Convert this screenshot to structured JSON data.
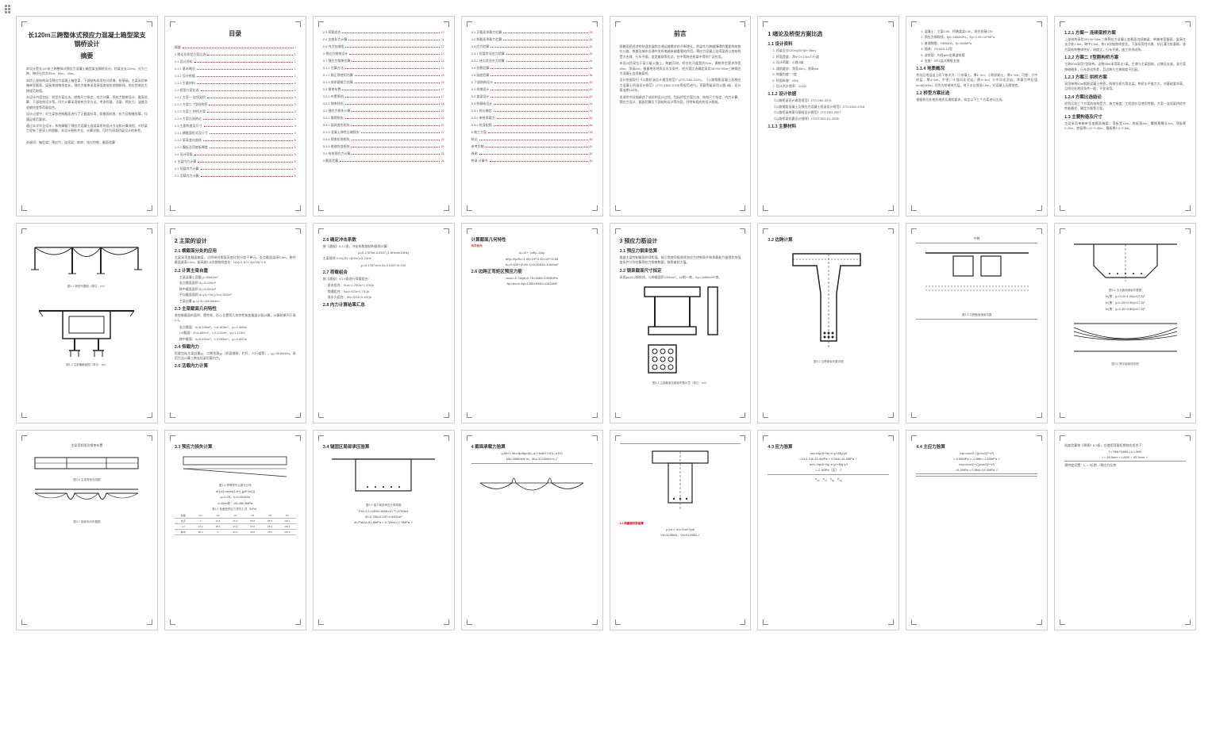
{
  "doc": {
    "title_line1": "长120m三跨整体式预应力混凝土箱型梁支钢桥设计",
    "title_line2": "摘要",
    "abstract_paras": [
      "本设计是长120米三跨整体式预应力混凝土箱型梁支钢桥设计。桥梁全长120m，分为三跨，跨径分别为35m、50m、35m。",
      "本桥上部结构采用预应力混凝土箱型梁，下部结构采用柱式桥墩、桩基础。主梁采用单箱单室截面，梁高按抛物线变化。预应力钢束采用高强度低松弛钢绞线，张拉控制应力按规范取值。",
      "本设计内容包括：桥型方案比选、结构尺寸拟定、内力计算、预应力钢束设计、截面验算、下部结构设计等。内力计算采用结构力学方法，考虑恒载、活载、预应力、温度及收缩徐变等荷载组合。",
      "设计过程中，对主梁各控制截面进行了正截面抗弯、斜截面抗剪、应力及裂缝验算，均满足规范要求。",
      "通过本次毕业设计，系统掌握了预应力混凝土连续梁桥的设计方法和计算流程，对桥梁工程有了更深入的理解。本设计图纸齐全、计算详细，可作为同类桥梁设计的参考。"
    ],
    "keywords": "关键词：箱型梁；预应力；连续梁；钢束；张拉控制；截面验算",
    "toc_title": "目录",
    "toc1": [
      {
        "label": "摘要",
        "pg": "I"
      },
      {
        "label": "1 绪论及桥型方案比选",
        "pg": "1"
      },
      {
        "label": "1.1 设计资料",
        "pg": "1"
      },
      {
        "label": "1.1.1 基本概况",
        "pg": "1"
      },
      {
        "label": "1.1.2 设计依据",
        "pg": "1"
      },
      {
        "label": "1.1.3 主要材料",
        "pg": "2"
      },
      {
        "label": "1.2 桥型方案比选",
        "pg": "2"
      },
      {
        "label": "1.2.1 方案一 连续梁桥",
        "pg": "3"
      },
      {
        "label": "1.2.2 方案二 T型刚构桥",
        "pg": "3"
      },
      {
        "label": "1.2.3 方案三 拱桥方案",
        "pg": "3"
      },
      {
        "label": "1.2.4 方案比选结论",
        "pg": "4"
      },
      {
        "label": "1.3 主要构造及尺寸",
        "pg": "4"
      },
      {
        "label": "1.3.1 横截面形式及尺寸",
        "pg": "4"
      },
      {
        "label": "1.3.2 梁高变化曲线",
        "pg": "5"
      },
      {
        "label": "1.3.3 腹板及顶底板厚度",
        "pg": "5"
      },
      {
        "label": "1.4 设计荷载",
        "pg": "5"
      },
      {
        "label": "2 主梁内力计算",
        "pg": "6"
      },
      {
        "label": "2.1 恒载内力计算",
        "pg": "6"
      },
      {
        "label": "2.2 活载内力计算",
        "pg": "8"
      }
    ],
    "toc2": [
      {
        "label": "2.3 荷载组合",
        "pg": "10"
      },
      {
        "label": "2.4 支座反力计算",
        "pg": "11"
      },
      {
        "label": "2.5 内力包络图",
        "pg": "12"
      },
      {
        "label": "3 预应力钢束设计",
        "pg": "14"
      },
      {
        "label": "3.1 预应力钢束估算",
        "pg": "14"
      },
      {
        "label": "3.1.1 估算方法",
        "pg": "14"
      },
      {
        "label": "3.1.2 按正常使用估算",
        "pg": "15"
      },
      {
        "label": "3.1.3 按承载能力估算",
        "pg": "16"
      },
      {
        "label": "3.2 钢束布置",
        "pg": "17"
      },
      {
        "label": "3.2.1 布置原则",
        "pg": "17"
      },
      {
        "label": "3.2.2 钢束线形",
        "pg": "18"
      },
      {
        "label": "3.3 预应力损失计算",
        "pg": "20"
      },
      {
        "label": "3.3.1 摩擦损失",
        "pg": "20"
      },
      {
        "label": "3.3.2 锚具变形损失",
        "pg": "21"
      },
      {
        "label": "3.3.3 混凝土弹性压缩损失",
        "pg": "22"
      },
      {
        "label": "3.3.4 钢束松弛损失",
        "pg": "23"
      },
      {
        "label": "3.3.5 收缩徐变损失",
        "pg": "24"
      },
      {
        "label": "3.4 有效预应力计算",
        "pg": "26"
      },
      {
        "label": "4 截面验算",
        "pg": "28"
      }
    ],
    "toc3": [
      {
        "label": "4.1 正截面承载力验算",
        "pg": "28"
      },
      {
        "label": "4.2 斜截面承载力验算",
        "pg": "30"
      },
      {
        "label": "4.3 应力验算",
        "pg": "32"
      },
      {
        "label": "4.3.1 短暂状况应力验算",
        "pg": "32"
      },
      {
        "label": "4.3.2 持久状况应力验算",
        "pg": "34"
      },
      {
        "label": "4.4 抗裂验算",
        "pg": "36"
      },
      {
        "label": "4.5 挠度验算",
        "pg": "38"
      },
      {
        "label": "5 下部结构设计",
        "pg": "40"
      },
      {
        "label": "5.1 桥墩设计",
        "pg": "40"
      },
      {
        "label": "5.2 盖梁设计",
        "pg": "42"
      },
      {
        "label": "5.3 桩基础设计",
        "pg": "44"
      },
      {
        "label": "5.3.1 桩长确定",
        "pg": "44"
      },
      {
        "label": "5.3.2 单桩承载力",
        "pg": "45"
      },
      {
        "label": "5.3.3 桩身配筋",
        "pg": "46"
      },
      {
        "label": "6 施工方案",
        "pg": "48"
      },
      {
        "label": "结论",
        "pg": "50"
      },
      {
        "label": "参考文献",
        "pg": "51"
      },
      {
        "label": "致谢",
        "pg": "52"
      },
      {
        "label": "附录 计算书",
        "pg": "53"
      }
    ],
    "preface_title": "前言",
    "preface_paras": [
      "随着国民经济的快速发展和交通运输需求的不断增长，桥梁作为跨越障碍的重要构筑物在公路、铁路及城市交通中发挥着越来越重要的作用。预应力混凝土连续梁桥以其结构受力合理、行车平顺、造型美观等优点，在中等跨径桥梁中得到广泛应用。",
      "本设计桥梁位于某二级公路上，跨越河流，桥位处河道宽约90m，通航净空要求净宽40m、净高6m。根据地形地质及水文条件，经方案比选确定采用35+50+35m三跨预应力混凝土连续箱梁桥。",
      "设计依据现行《公路桥涵设计通用规范》(JTG D60-2015)、《公路钢筋混凝土及预应力混凝土桥涵设计规范》(JTG 3362-2018)等规范进行。荷载等级采用公路-I级，设计基准期100年。",
      "本说明书详细阐述了该桥的设计过程，包括桥型方案比选、结构尺寸拟定、内力计算、预应力设计、截面验算及下部结构设计等内容，并附有相应的设计图纸。"
    ],
    "ch1_title": "1 绪论及桥型方案比选",
    "ch1_1": "1.1 设计资料",
    "ch1_items": [
      "1. 桥梁全长120m(35+50+35m)",
      "2. 桥面宽度：净9+2×1.5m人行道",
      "3. 设计荷载：公路-I级",
      "4. 通航要求：净宽40m，净高6m",
      "5. 地震烈度：7度",
      "6. 桥面纵坡：≤3%",
      "7. 设计洪水频率：1/100"
    ],
    "ch1_1_2": "1.1.2 设计依据",
    "ch1_deps": [
      "《公路桥涵设计通用规范》JTG D60-2015",
      "《公路钢筋混凝土及预应力混凝土桥涵设计规范》JTG 3362-2018",
      "《公路桥涵地基与基础设计规范》JTG D63-2007",
      "《公路桥梁抗震设计细则》JTG/T B02-01-2008"
    ],
    "ch1_1_3": "1.1.3 主要材料",
    "p6_items": [
      "1. 混凝土：主梁C50，桥墩盖梁C40，承台桩基C30",
      "2. 预应力钢绞线：fpk=1860MPa，Ep=1.95×10⁵MPa",
      "3. 普通钢筋：HRB400，fy=360MPa",
      "4. 锚具：OVM15-12型",
      "5. 波纹管：内径φ90金属波纹管",
      "6. 支座：GPZ盆式橡胶支座"
    ],
    "p6_h1": "1.1.4 地质概况",
    "p6_p1": "桥址区地层自上而下依次为：①杂填土，厚1~2m；②粉质粘土，厚3~5m，可塑；③中砂层，厚4~6m，中密；④强风化泥岩，厚3~4m；⑤中风化泥岩，承载力特征值fa=800kPa，可作为桩端持力层。地下水位埋深2.5m，对混凝土无腐蚀性。",
    "p6_h2": "1.2 桥型方案比选",
    "p6_p2": "根据桥位处地形地质及通航要求，拟定以下三个方案进行比选。",
    "p7_h1": "1.2.1 方案一 连续梁桥方案",
    "p7_p1": "上部结构采用35+50+35m三跨预应力混凝土变截面连续箱梁，单箱单室截面。梁高在支点处2.8m，跨中1.6m，按1.8次抛物线变化。下部采用柱式墩、钻孔灌注桩基础。该方案结构整体性好，刚度大，行车平顺，施工技术成熟。",
    "p7_h2": "1.2.2 方案二 T型刚构桥方案",
    "p7_p2": "主跨50m采用T型刚构，边跨35m采用简支T梁。主墩与主梁固结，边墩设支座。该方案伸缩缝多，行车舒适性差，且边跨与主跨刚度不匹配。",
    "p7_h3": "1.2.3 方案三 拱桥方案",
    "p7_p3": "采用单跨50m钢筋混凝土拱桥，两侧引桥为简支梁。拱桥水平推力大，对基础要求高，且桥位处地质条件一般，不宜采用。",
    "p7_h4": "1.2.4 方案比选结论",
    "p7_p4": "综合比较三个方案的结构受力、施工难度、工程造价及使用性能，方案一连续梁桥综合性能最优，确定为推荐方案。",
    "p7_h5": "1.3 主要构造及尺寸",
    "p7_p5": "主梁采用单箱单室变截面箱梁，顶板宽12m，底板宽6m，翼缘悬臂长3m。顶板厚0.25m，底板厚0.22~0.35m，腹板厚0.4~0.6m。",
    "p8_cap1": "图1-1 桥型布置图（单位：cm）",
    "p8_cap2": "图1-2 主梁横截面图（单位：cm）",
    "ch2_title": "2 主梁的设计",
    "ch2_1": "2.1 横截面分处的应用",
    "ch2_1_p": "主梁采用变截面箱梁，沿桥纵向按梁高变化划分若干单元。支点截面梁高2.8m，跨中截面梁高1.6m，梁高按1.8次抛物线变化：h(x)=1.6+1.2(x/25)^1.8",
    "ch2_2": "2.2 计算主梁自重",
    "ch2_2_items": [
      "主梁混凝土容重 γ=26kN/m³",
      "支点截面面积 A₁=8.245m²",
      "跨中截面面积 A₂=5.630m²",
      "平均截面面积 A=(A₁+2A₂)/3=6.502m²",
      "主梁自重 g₁=γ·A=169.0kN/m"
    ],
    "ch2_3": "2.3 主梁截面几何特性",
    "ch2_3_p": "各控制截面的面积、惯性矩、形心位置等几何特性按变截面分段计算，计算结果列于表2-1。",
    "ch2_3_items": [
      "支点截面：A=8.245m²，I=8.963m⁴，yₓ=1.486m",
      "L/4截面：A=6.890m²，I=5.214m⁴，yₓ=1.123m",
      "跨中截面：A=5.630m²，I=3.085m⁴，yₓ=0.852m"
    ],
    "ch2_4": "2.4 恒载内力",
    "ch2_4_p": "恒载包括主梁自重g₁、二期恒载g₂（桥面铺装、栏杆、人行道等）。g₂=35.6kN/m。采用力法计算三跨连续梁恒载内力。",
    "ch2_5": "2.5 活载内力计算",
    "p10_h1": "2.6 确定冲击系数",
    "p10_p1": "按《通规》4.3.2条，冲击系数按结构基频计算：",
    "p10_f1": "μ=0.1767lnf-0.0157  (1.5Hz≤f≤14Hz)",
    "p10_p2": "主梁基频 f=π/(2l²)·√(EI/m)=3.24Hz",
    "p10_f2": "μ=0.1767×ln3.24-0.0157=0.192",
    "p10_h2": "2.7 荷载组合",
    "p10_p3": "按《通规》4.1.5条进行荷载组合：",
    "p10_items": [
      "基本组合：Sud=1.2SGk+1.4SQk",
      "频遇组合：Ssd=SGk+0.7SQk",
      "准永久组合：Sld=SGk+0.4SQk"
    ],
    "p10_h3": "2.8 内力计算结果汇总",
    "p11_h1": "计算截面几何特性",
    "p11_sub": "换算截面",
    "p11_f": [
      "Aₒ=A+（αEp-1)Ap",
      "αEp=Ep/Ec=1.95×10⁵/3.45×10⁴=5.65",
      "Aₒ=5.630+(5.65-1)×0.00834=5.669m²"
    ],
    "p11_h2": "2.6 边跨正弯矩区预应力筋",
    "p11_f2": [
      "σcon=0.75fpk=0.75×1860=1395MPa",
      "Np=σcon·Ap=1395×8340=11634kN"
    ],
    "ch3_title": "3 预应力筋设计",
    "ch3_1": "3.1 预应力钢束估算",
    "ch3_1_p": "根据主梁控制截面的弯矩值，按正常使用极限状态应力控制条件和承载能力极限状态强度条件分别估算预应力钢束数量，取两者较大值。",
    "ch3_2": "3.2 钢束截面尺寸拟定",
    "ch3_2_p": "采用φs15.2钢绞线，公称截面积139mm²，12根一束，Ap=1668mm²/束。",
    "p12_cap": "图3-1 主梁截面及钢束布置示意（单位：cm）",
    "p13_h": "3.2 边跨计算",
    "p13_cap": "图3-2 边跨钢束布置详图",
    "p14_h": "中跨",
    "p14_cap": "图3-3 中跨截面钢束布置",
    "p15_cap": "图3-4 支点截面钢束布置图",
    "p16_cap": "图3-5 跨中钢束线形图",
    "p16_f": [
      "N₁束：y=0.15+1.05(x/17.5)²",
      "N₂束：y=0.25+0.95(x/17.5)²",
      "N₃束：y=0.35+0.85(x/17.5)²"
    ],
    "p17_h": "主梁弯矩图及钢束布置",
    "p17_cap1": "图3-6 主梁弯矩包络图",
    "p17_cap2": "图3-7 钢束纵向布置图",
    "p18_h": "3.3 预应力损失计算",
    "p18_cap": "图3-8 摩擦损失沿梁长分布",
    "p18_items": [
      "σl1(x)=σcon[1-e^(-(μθ+kx))]",
      "μ=0.25，k=0.0015/m",
      "x=60m处：σl1=86.3MPa"
    ],
    "p19_h": "3.4 锚固区局部承压验算",
    "p19_cap": "图3-9 锚下局部承压计算简图",
    "p19_items": [
      "Fld=1.2×1395×1668×10⁻³=2792kN",
      "Al=0.785×0.24²=0.0452m²",
      "σl=Fld/Al=61.8MPa < 0.7βfcd=17.9MPa ✓"
    ],
    "tbl_title": "表3-1 各截面预应力损失汇总（MPa）",
    "tbl_cols": [
      "截面",
      "σl1",
      "σl2",
      "σl4",
      "σl5",
      "σl6",
      "Σσl"
    ],
    "tbl_rows": [
      [
        "支点",
        "0",
        "42.5",
        "35.2",
        "55.8",
        "95.6",
        "229.1"
      ],
      [
        "L/4",
        "43.2",
        "38.1",
        "35.2",
        "55.8",
        "88.3",
        "260.6"
      ],
      [
        "跨中",
        "86.3",
        "0",
        "35.2",
        "55.8",
        "78.5",
        "255.8"
      ]
    ],
    "p21_h": "4 截面承载力验算",
    "p21_f": [
      "γ₀Md ≤ Mu=fpdApd(h₀-a')+fcdb'f h'f(h₀-h'f/2)",
      "Md=28650kN·m，Mu=31240kN·m ✓"
    ],
    "p22_h": "4.2 斜截面抗剪验算",
    "p22_f": [
      "γ₀Vd ≤ Vu=Vcs+Vpb",
      "Vd=4235kN，Vu=5120kN ✓"
    ],
    "p23_h": "4.3 应力验算",
    "p23_items": [
      "σcc=Np/A+Np·e·y/I-Mg·y/I",
      "=14.2-3.8=10.4MPa < 0.5fck=16.2MPa ✓",
      "σct=-Np/A+Np·e·y/I+Mg·y/I",
      "=-2.1MPa（压） ✓"
    ],
    "p24_h": "4.4 主应力验算",
    "p24_f": [
      "σtp=σcx/2-√((σcx/2)²+τ²)",
      "=-0.83MPa > -0.6ftk=-1.59MPa ✓",
      "σcp=σcx/2+√((σcx/2)²+τ²)",
      "=9.2MPa < 0.6fck=19.4MPa ✓"
    ]
  },
  "style": {
    "bg": "#ffffff",
    "page_border": "#d0d0d0",
    "corner": "#888888",
    "text": "#555555",
    "heading": "#333333",
    "toc_dot": "#b33333",
    "red": "#cc0000",
    "diagram_stroke": "#222222"
  }
}
